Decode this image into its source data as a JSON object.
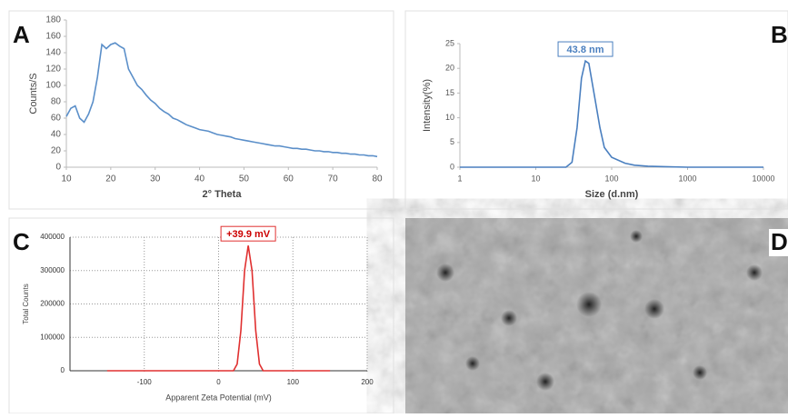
{
  "chart_data": [
    {
      "type": "line",
      "panel_label": "A",
      "xlabel": "2° Theta",
      "ylabel": "Counts/S",
      "x": [
        10,
        11,
        12,
        13,
        14,
        15,
        16,
        17,
        18,
        19,
        20,
        21,
        22,
        23,
        24,
        25,
        26,
        27,
        28,
        29,
        30,
        31,
        32,
        33,
        34,
        35,
        36,
        37,
        38,
        39,
        40,
        41,
        42,
        43,
        44,
        45,
        46,
        47,
        48,
        49,
        50,
        51,
        52,
        53,
        54,
        55,
        56,
        57,
        58,
        59,
        60,
        61,
        62,
        63,
        64,
        65,
        66,
        67,
        68,
        69,
        70,
        71,
        72,
        73,
        74,
        75,
        76,
        77,
        78,
        79,
        80
      ],
      "series": [
        {
          "color": "#5b8fc9",
          "values": [
            62,
            72,
            75,
            60,
            55,
            65,
            80,
            110,
            150,
            145,
            150,
            152,
            148,
            145,
            120,
            110,
            100,
            95,
            88,
            82,
            78,
            72,
            68,
            65,
            60,
            58,
            55,
            52,
            50,
            48,
            46,
            45,
            44,
            42,
            40,
            39,
            38,
            37,
            35,
            34,
            33,
            32,
            31,
            30,
            29,
            28,
            27,
            26,
            26,
            25,
            24,
            23,
            23,
            22,
            22,
            21,
            20,
            20,
            19,
            19,
            18,
            18,
            17,
            17,
            16,
            16,
            15,
            15,
            14,
            14,
            13
          ]
        }
      ],
      "xlim": [
        10,
        80
      ],
      "xticks": [
        10,
        20,
        30,
        40,
        50,
        60,
        70,
        80
      ],
      "ylim": [
        0,
        180
      ],
      "yticks": [
        0,
        20,
        40,
        60,
        80,
        100,
        120,
        140,
        160,
        180
      ]
    },
    {
      "type": "line",
      "panel_label": "B",
      "xlabel": "Size (d.nm)",
      "ylabel": "Intensity(%)",
      "xscale": "log",
      "annotation": "43.8 nm",
      "x": [
        1,
        10,
        20,
        25,
        30,
        35,
        40,
        45,
        50,
        60,
        70,
        80,
        100,
        150,
        200,
        300,
        500,
        1000,
        10000
      ],
      "series": [
        {
          "color": "#4a7fbf",
          "values": [
            0,
            0,
            0,
            0,
            1,
            8,
            18,
            21.5,
            21,
            14,
            8,
            4,
            2,
            0.8,
            0.4,
            0.2,
            0.1,
            0,
            0
          ]
        }
      ],
      "xlim": [
        1,
        10000
      ],
      "xticks": [
        1,
        10,
        100,
        1000,
        10000
      ],
      "ylim": [
        0,
        25
      ],
      "yticks": [
        0,
        5,
        10,
        15,
        20,
        25
      ]
    },
    {
      "type": "line",
      "panel_label": "C",
      "xlabel": "Apparent Zeta Potential (mV)",
      "ylabel": "Total Counts",
      "annotation": "+39.9 mV",
      "grid": true,
      "x": [
        -150,
        20,
        25,
        30,
        35,
        39.9,
        45,
        50,
        55,
        60,
        150
      ],
      "series": [
        {
          "color": "#e03030",
          "values": [
            0,
            0,
            20000,
            120000,
            300000,
            375000,
            300000,
            120000,
            20000,
            0,
            0
          ]
        }
      ],
      "xlim": [
        -200,
        200
      ],
      "xticks": [
        -100,
        0,
        100,
        200
      ],
      "ylim": [
        0,
        400000
      ],
      "yticks": [
        0,
        100000,
        200000,
        300000,
        400000
      ]
    }
  ],
  "image": {
    "panel_label": "D"
  }
}
